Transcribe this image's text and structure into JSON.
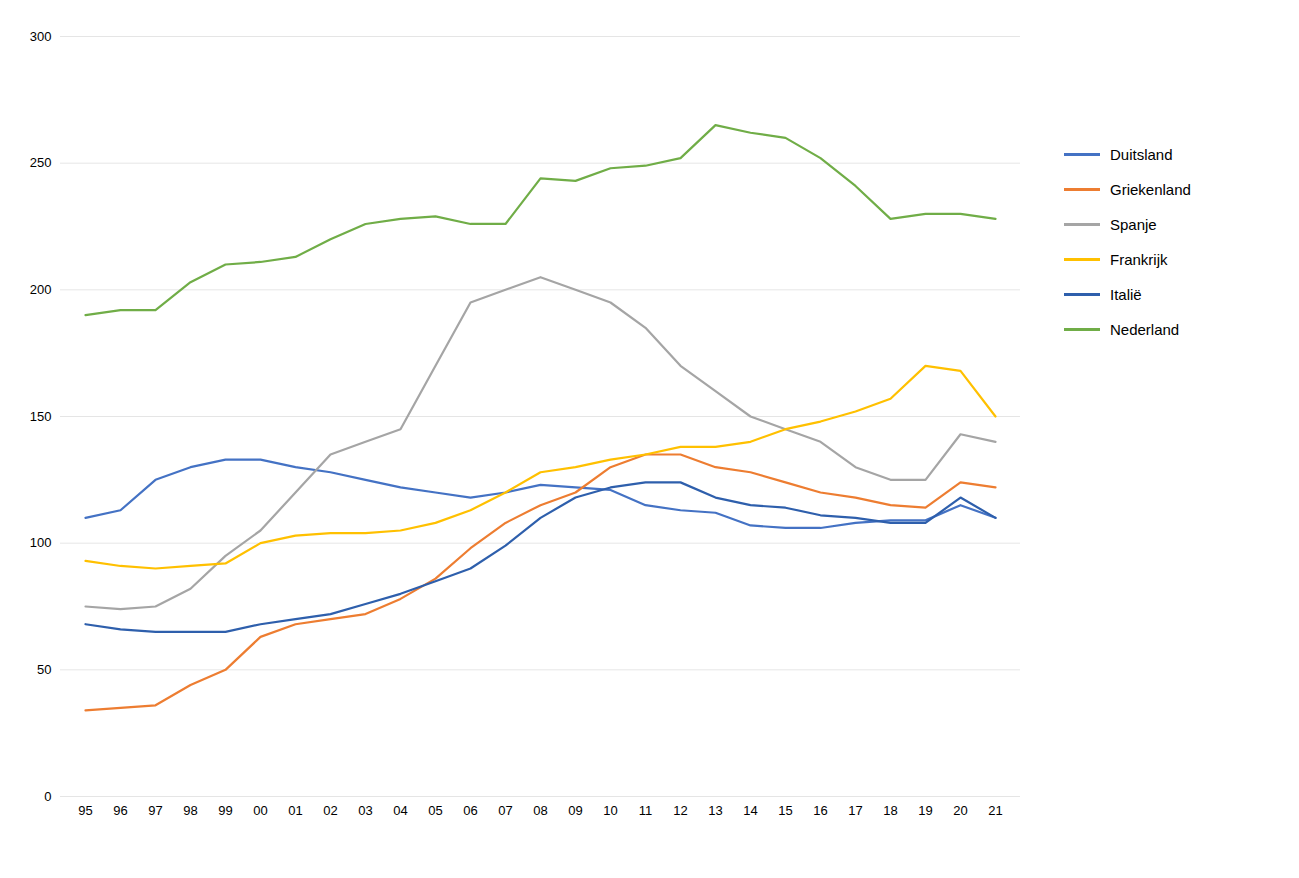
{
  "chart_data": {
    "type": "line",
    "categories": [
      "95",
      "96",
      "97",
      "98",
      "99",
      "00",
      "01",
      "02",
      "03",
      "04",
      "05",
      "06",
      "07",
      "08",
      "09",
      "10",
      "11",
      "12",
      "13",
      "14",
      "15",
      "16",
      "17",
      "18",
      "19",
      "20",
      "21"
    ],
    "series": [
      {
        "name": "Duitsland",
        "color": "#4472C4",
        "values": [
          110,
          113,
          125,
          130,
          133,
          133,
          130,
          128,
          125,
          122,
          120,
          118,
          120,
          123,
          122,
          121,
          115,
          113,
          112,
          107,
          106,
          106,
          108,
          109,
          109,
          115,
          110
        ]
      },
      {
        "name": "Griekenland",
        "color": "#ED7D31",
        "values": [
          34,
          35,
          36,
          44,
          50,
          63,
          68,
          70,
          72,
          78,
          86,
          98,
          108,
          115,
          120,
          130,
          135,
          135,
          130,
          128,
          124,
          120,
          118,
          115,
          114,
          124,
          122
        ]
      },
      {
        "name": "Spanje",
        "color": "#A5A5A5",
        "values": [
          75,
          74,
          75,
          82,
          95,
          105,
          120,
          135,
          140,
          145,
          170,
          195,
          200,
          205,
          200,
          195,
          185,
          170,
          160,
          150,
          145,
          140,
          130,
          125,
          125,
          143,
          140
        ]
      },
      {
        "name": "Frankrijk",
        "color": "#FFC000",
        "values": [
          93,
          91,
          90,
          91,
          92,
          100,
          103,
          104,
          104,
          105,
          108,
          113,
          120,
          128,
          130,
          133,
          135,
          138,
          138,
          140,
          145,
          148,
          152,
          157,
          170,
          168,
          150
        ]
      },
      {
        "name": "Italië",
        "color": "#2E5FAC",
        "values": [
          68,
          66,
          65,
          65,
          65,
          68,
          70,
          72,
          76,
          80,
          85,
          90,
          99,
          110,
          118,
          122,
          124,
          124,
          118,
          115,
          114,
          111,
          110,
          108,
          108,
          118,
          110
        ]
      },
      {
        "name": "Nederland",
        "color": "#70AD47",
        "values": [
          190,
          192,
          192,
          203,
          210,
          211,
          213,
          220,
          226,
          228,
          229,
          226,
          226,
          244,
          243,
          248,
          249,
          252,
          265,
          262,
          260,
          252,
          241,
          228,
          230,
          230,
          228
        ]
      }
    ],
    "ylim": [
      0,
      300
    ],
    "yticks": [
      0,
      50,
      100,
      150,
      200,
      250,
      300
    ],
    "grid": true,
    "legend": "right"
  }
}
